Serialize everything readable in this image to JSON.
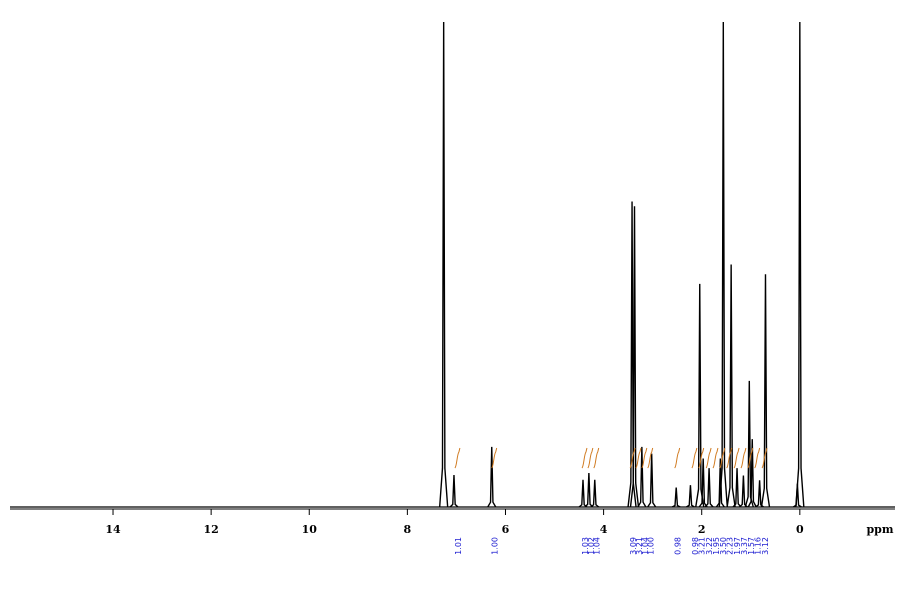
{
  "chart_data": {
    "type": "spectrum",
    "x_label": "ppm",
    "xlim": [
      16.1,
      -1.94
    ],
    "ylim": [
      0,
      100
    ],
    "xticks": [
      14,
      12,
      10,
      8,
      6,
      4,
      2,
      0
    ],
    "color": "#000000",
    "integral_color": "#d07a20",
    "label_color": "#1a1ad0",
    "peaks": {
      "x": [
        7.26,
        7.05,
        6.28,
        4.42,
        4.3,
        4.18,
        3.42,
        3.37,
        3.22,
        3.02,
        2.52,
        2.23,
        2.04,
        1.97,
        1.85,
        1.62,
        1.56,
        1.4,
        1.28,
        1.15,
        1.03,
        0.97,
        0.82,
        0.7,
        0.05,
        0.0
      ],
      "values": [
        100,
        6.6,
        12.4,
        5.6,
        7,
        5.6,
        63,
        62,
        12.4,
        11,
        4,
        4.5,
        46,
        10,
        8,
        10,
        100,
        50,
        8,
        6.5,
        26,
        14,
        5.5,
        48,
        4.8,
        100
      ]
    },
    "integrals": [
      {
        "ppm": 6.97,
        "label": "1.01"
      },
      {
        "ppm": 6.22,
        "label": "1.00"
      },
      {
        "ppm": 4.38,
        "label": "1.03"
      },
      {
        "ppm": 4.26,
        "label": "1.02"
      },
      {
        "ppm": 4.14,
        "label": "1.04"
      },
      {
        "ppm": 3.4,
        "label": "3.09"
      },
      {
        "ppm": 3.28,
        "label": "3.21"
      },
      {
        "ppm": 3.16,
        "label": "1.04"
      },
      {
        "ppm": 3.04,
        "label": "1.00"
      },
      {
        "ppm": 2.49,
        "label": "0.98"
      },
      {
        "ppm": 2.14,
        "label": "0.98"
      },
      {
        "ppm": 2.0,
        "label": "3.21"
      },
      {
        "ppm": 1.85,
        "label": "3.22"
      },
      {
        "ppm": 1.71,
        "label": "1.95"
      },
      {
        "ppm": 1.57,
        "label": "3.50"
      },
      {
        "ppm": 1.43,
        "label": "2.23"
      },
      {
        "ppm": 1.28,
        "label": "1.97"
      },
      {
        "ppm": 1.14,
        "label": "3.37"
      },
      {
        "ppm": 1.0,
        "label": "1.57"
      },
      {
        "ppm": 0.86,
        "label": "1.16"
      },
      {
        "ppm": 0.71,
        "label": "3.12"
      }
    ]
  }
}
